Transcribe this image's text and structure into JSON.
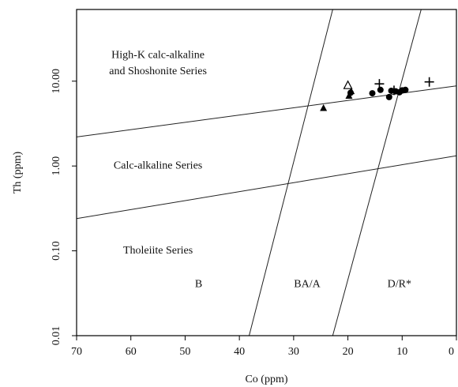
{
  "chart_data": {
    "type": "scatter",
    "xlabel": "Co (ppm)",
    "ylabel": "Th (ppm)",
    "x_reversed": true,
    "xlim": [
      70,
      0
    ],
    "ylim": [
      0.01,
      70
    ],
    "y_scale": "log",
    "x_ticks": [
      70,
      60,
      50,
      40,
      30,
      20,
      10,
      0
    ],
    "x_tick_labels": [
      "70",
      "60",
      "50",
      "40",
      "30",
      "20",
      "10",
      "0"
    ],
    "y_ticks": [
      0.01,
      0.1,
      1,
      10
    ],
    "y_tick_labels": [
      "0.01",
      "0.10",
      "1.00",
      "10.00"
    ],
    "region_labels": [
      {
        "text": "High-K calc-alkaline",
        "x": 55,
        "y": 20
      },
      {
        "text": "and Shoshonite Series",
        "x": 55,
        "y": 13
      },
      {
        "text": "Calc-alkaline Series",
        "x": 55,
        "y": 1.0
      },
      {
        "text": "Tholeiite Series",
        "x": 55,
        "y": 0.1
      },
      {
        "text": "B",
        "x": 47.5,
        "y": 0.04
      },
      {
        "text": "BA/A",
        "x": 27.5,
        "y": 0.04
      },
      {
        "text": "D/R*",
        "x": 10.5,
        "y": 0.04
      }
    ],
    "boundary_lines": [
      {
        "name": "HK-CA boundary",
        "points": [
          [
            70,
            2.2
          ],
          [
            0,
            8.8
          ]
        ]
      },
      {
        "name": "CA-TH boundary",
        "points": [
          [
            70,
            0.24
          ],
          [
            0,
            1.32
          ]
        ]
      },
      {
        "name": "B-BA/A boundary",
        "points": [
          [
            38.2,
            0.01
          ],
          [
            22.8,
            70
          ]
        ]
      },
      {
        "name": "BA/A-D/R boundary",
        "points": [
          [
            22.8,
            0.01
          ],
          [
            6.5,
            70
          ]
        ]
      }
    ],
    "series": [
      {
        "marker": "circle",
        "points": [
          [
            19.5,
            7.3
          ],
          [
            15.5,
            7.2
          ],
          [
            14.0,
            7.9
          ],
          [
            12.4,
            6.5
          ],
          [
            12.0,
            7.7
          ],
          [
            11.2,
            7.6
          ],
          [
            10.5,
            7.4
          ],
          [
            10.0,
            7.8
          ],
          [
            9.4,
            7.9
          ]
        ]
      },
      {
        "marker": "triangle",
        "points": [
          [
            24.5,
            4.8
          ],
          [
            19.8,
            6.7
          ],
          [
            19.4,
            7.6
          ]
        ]
      },
      {
        "marker": "open-triangle",
        "points": [
          [
            20.0,
            8.9
          ]
        ]
      },
      {
        "marker": "plus",
        "points": [
          [
            14.2,
            9.3
          ],
          [
            11.5,
            7.8
          ],
          [
            5.0,
            9.8
          ]
        ]
      }
    ]
  }
}
